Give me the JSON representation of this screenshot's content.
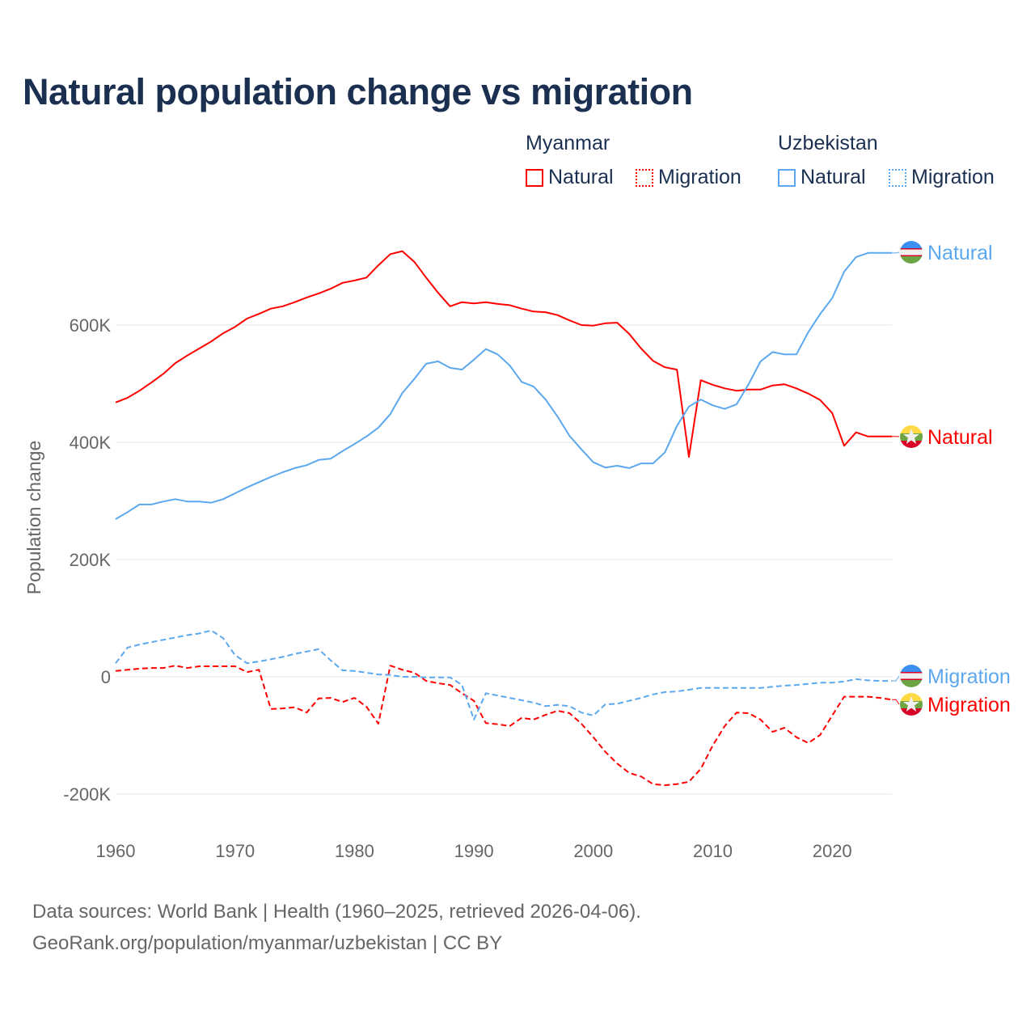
{
  "title": "Natural population change vs migration",
  "legend": {
    "groups": [
      {
        "name": "Myanmar",
        "color": "#ff0000",
        "items": [
          "Natural",
          "Migration"
        ]
      },
      {
        "name": "Uzbekistan",
        "color": "#5ca8ee",
        "items": [
          "Natural",
          "Migration"
        ]
      }
    ]
  },
  "footer": {
    "line1": "Data sources: World Bank | Health (1960–2025, retrieved 2026-04-06).",
    "line2": "GeoRank.org/population/myanmar/uzbekistan | CC BY"
  },
  "chart_data": {
    "type": "line",
    "title": "Natural population change vs migration",
    "xlabel": "",
    "ylabel": "Population change",
    "xlim": [
      1960,
      2025
    ],
    "ylim": [
      -200000,
      700000
    ],
    "x_ticks": [
      "1960",
      "1970",
      "1980",
      "1990",
      "2000",
      "2010",
      "2020"
    ],
    "y_ticks": [
      {
        "value": -200000,
        "label": "-200K"
      },
      {
        "value": 0,
        "label": "0"
      },
      {
        "value": 200000,
        "label": "200K"
      },
      {
        "value": 400000,
        "label": "400K"
      },
      {
        "value": 600000,
        "label": "600K"
      }
    ],
    "grid": true,
    "x_start": 1960,
    "series": [
      {
        "name": "Myanmar Natural",
        "label": "Natural",
        "country": "Myanmar",
        "color": "#ff0000",
        "dash": false,
        "values_k": [
          468,
          476,
          488,
          502,
          517,
          535,
          548,
          560,
          572,
          586,
          597,
          611,
          619,
          628,
          632,
          639,
          647,
          654,
          662,
          672,
          676,
          681,
          702,
          721,
          726,
          708,
          681,
          655,
          632,
          639,
          637,
          639,
          636,
          634,
          628,
          623,
          622,
          617,
          608,
          600,
          599,
          603,
          604,
          585,
          560,
          539,
          528,
          524,
          375,
          506,
          498,
          492,
          488,
          490,
          490,
          497,
          499,
          492,
          483,
          472,
          450,
          394,
          417,
          410,
          410,
          410
        ]
      },
      {
        "name": "Uzbekistan Natural",
        "label": "Natural",
        "country": "Uzbekistan",
        "color": "#5ca8ee",
        "dash": false,
        "values_k": [
          269,
          281,
          294,
          294,
          299,
          303,
          299,
          299,
          297,
          303,
          313,
          323,
          332,
          341,
          349,
          356,
          361,
          370,
          372,
          385,
          397,
          410,
          425,
          448,
          484,
          508,
          534,
          538,
          527,
          524,
          541,
          559,
          550,
          531,
          503,
          495,
          473,
          444,
          411,
          388,
          366,
          357,
          360,
          356,
          364,
          364,
          383,
          428,
          461,
          473,
          463,
          457,
          465,
          499,
          538,
          554,
          550,
          550,
          588,
          619,
          646,
          691,
          716,
          723,
          723,
          723
        ]
      },
      {
        "name": "Myanmar Migration",
        "label": "Migration",
        "country": "Myanmar",
        "color": "#ff0000",
        "dash": true,
        "values_k": [
          10,
          12,
          14,
          15,
          15,
          19,
          15,
          18,
          18,
          18,
          18,
          8,
          12,
          -55,
          -54,
          -52,
          -61,
          -37,
          -36,
          -43,
          -36,
          -51,
          -80,
          19,
          12,
          7,
          -7,
          -11,
          -14,
          -28,
          -41,
          -79,
          -81,
          -84,
          -70,
          -73,
          -65,
          -58,
          -62,
          -80,
          -103,
          -128,
          -148,
          -164,
          -170,
          -183,
          -185,
          -183,
          -179,
          -157,
          -117,
          -84,
          -61,
          -62,
          -73,
          -94,
          -87,
          -103,
          -113,
          -99,
          -66,
          -34,
          -34,
          -34,
          -36,
          -39
        ]
      },
      {
        "name": "Uzbekistan Migration",
        "label": "Migration",
        "country": "Uzbekistan",
        "color": "#5ca8ee",
        "dash": true,
        "values_k": [
          23,
          50,
          55,
          59,
          63,
          67,
          71,
          74,
          79,
          66,
          37,
          23,
          26,
          30,
          34,
          39,
          43,
          47,
          28,
          11,
          10,
          7,
          4,
          3,
          0,
          0,
          -1,
          -1,
          -1,
          -14,
          -73,
          -28,
          -32,
          -36,
          -40,
          -44,
          -50,
          -48,
          -50,
          -61,
          -66,
          -47,
          -46,
          -41,
          -36,
          -30,
          -26,
          -25,
          -22,
          -19,
          -19,
          -19,
          -19,
          -19,
          -19,
          -17,
          -15,
          -14,
          -12,
          -10,
          -10,
          -8,
          -4,
          -6,
          -7,
          -7
        ]
      }
    ]
  }
}
